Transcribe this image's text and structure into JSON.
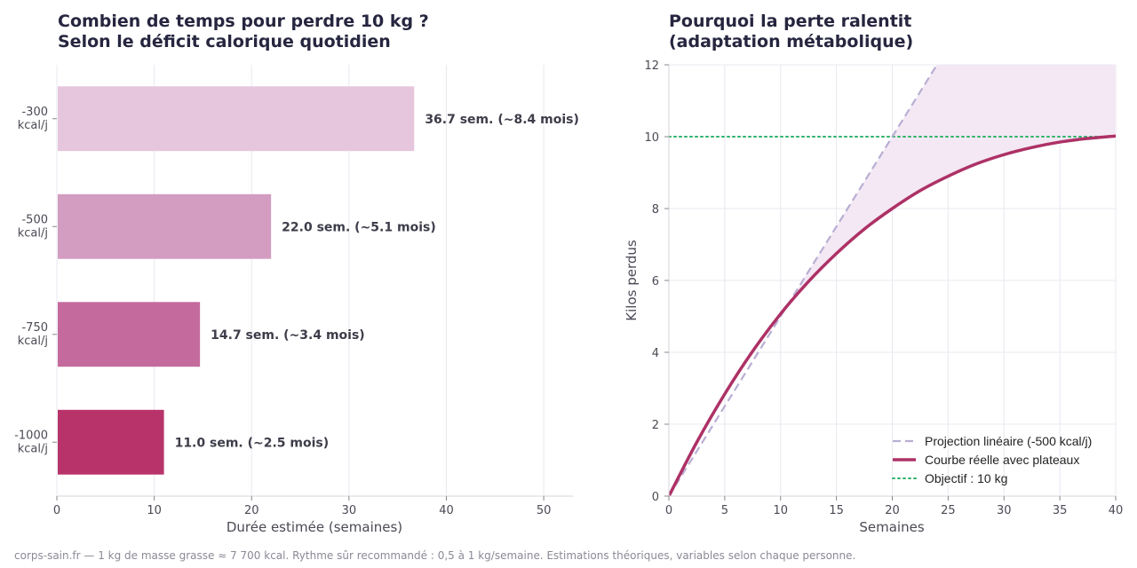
{
  "chart_data": [
    {
      "type": "bar",
      "orientation": "horizontal",
      "title": "Combien de temps pour perdre 10 kg ?\nSelon le déficit calorique quotidien",
      "categories": [
        "-300\nkcal/j",
        "-500\nkcal/j",
        "-750\nkcal/j",
        "-1000\nkcal/j"
      ],
      "values": [
        36.7,
        22.0,
        14.7,
        11.0
      ],
      "data_labels": [
        "36.7 sem.  (~8.4 mois)",
        "22.0 sem.  (~5.1 mois)",
        "14.7 sem.  (~3.4 mois)",
        "11.0 sem.  (~2.5 mois)"
      ],
      "colors": [
        "#e6c6dc",
        "#d39cc1",
        "#c56a9d",
        "#b8336a"
      ],
      "xlabel": "Durée estimée (semaines)",
      "ylabel": "",
      "xlim": [
        0,
        53
      ],
      "xticks": [
        0,
        10,
        20,
        30,
        40,
        50
      ],
      "grid": "vertical"
    },
    {
      "type": "line",
      "title": "Pourquoi la perte ralentit\n(adaptation métabolique)",
      "xlabel": "Semaines",
      "ylabel": "Kilos perdus",
      "xlim": [
        0,
        40
      ],
      "ylim": [
        0,
        12
      ],
      "xticks": [
        0,
        5,
        10,
        15,
        20,
        25,
        30,
        35,
        40
      ],
      "yticks": [
        0,
        2,
        4,
        6,
        8,
        10,
        12
      ],
      "grid": true,
      "legend_position": "bottom-right",
      "series": [
        {
          "name": "Projection linéaire (-500 kcal/j)",
          "style": "dashed",
          "color": "#b9aed3",
          "x": [
            0,
            10,
            20,
            24.2
          ],
          "y": [
            0,
            5,
            10,
            12.1
          ]
        },
        {
          "name": "Courbe réelle avec plateaux",
          "style": "solid",
          "color": "#ad3166",
          "x": [
            0,
            2.5,
            5,
            7.5,
            10,
            12.5,
            15,
            17.5,
            20,
            22.5,
            25,
            27.5,
            30,
            32.5,
            35,
            37.5,
            40
          ],
          "y": [
            0,
            1.5,
            2.84,
            4.03,
            5.07,
            5.97,
            6.75,
            7.43,
            8.0,
            8.5,
            8.9,
            9.24,
            9.5,
            9.7,
            9.85,
            9.95,
            10.02
          ]
        },
        {
          "name": "Objectif : 10 kg",
          "style": "dotted",
          "color": "#2fb36a",
          "x": [
            0,
            40
          ],
          "y": [
            10,
            10
          ]
        }
      ],
      "shaded_area_color": "#f3e8f4"
    }
  ],
  "footer": "corps-sain.fr — 1 kg de masse grasse ≈ 7 700 kcal. Rythme sûr recommandé : 0,5 à 1 kg/semaine. Estimations théoriques, variables selon chaque personne."
}
